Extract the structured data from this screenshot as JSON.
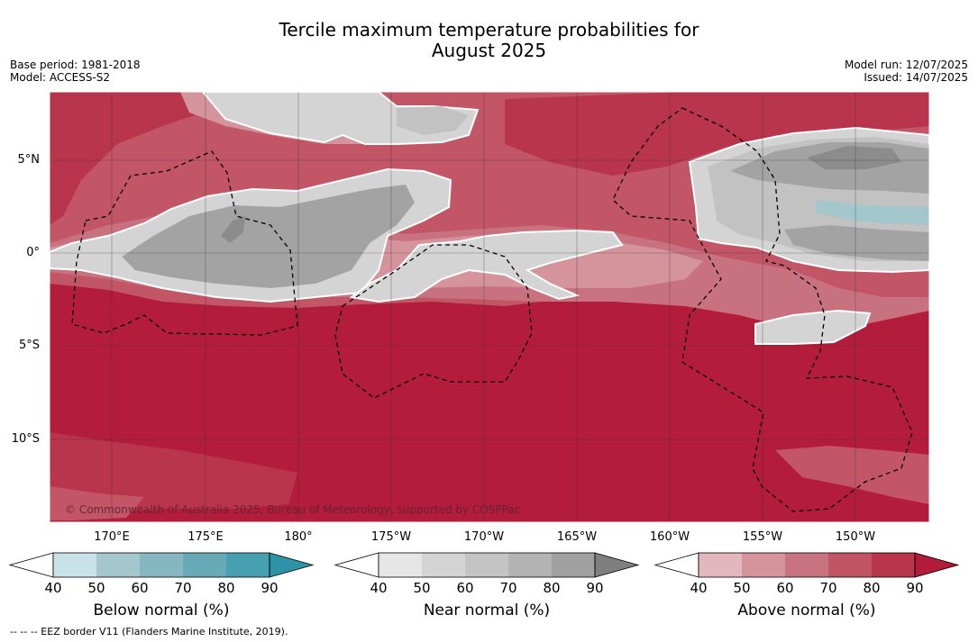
{
  "title_line1": "Tercile maximum temperature probabilities for",
  "title_line2": "August 2025",
  "meta_left": [
    "Base period: 1981-2018",
    "Model: ACCESS-S2"
  ],
  "meta_right": [
    "Model run: 12/07/2025",
    "Issued: 14/07/2025"
  ],
  "lat_labels": [
    "5°N",
    "0°",
    "5°S",
    "10°S"
  ],
  "lon_labels": [
    "170°E",
    "175°E",
    "180°",
    "175°W",
    "170°W",
    "165°W",
    "160°W",
    "155°W",
    "150°W"
  ],
  "copyright": "© Commonwealth of Australia 2025, Bureau of Meteorology, supported by COSPPac",
  "footnote": "--  --  -- EEZ border V11 (Flanders Marine Institute, 2019).",
  "colorbars": [
    {
      "label": "Below normal (%)",
      "ticks": [
        "40",
        "50",
        "60",
        "70",
        "80",
        "90"
      ],
      "colors": [
        "#ffffff",
        "#c9e2e9",
        "#a4c6cd",
        "#86b6c0",
        "#67a9b6",
        "#46a0b0",
        "#2e93a7"
      ]
    },
    {
      "label": "Near normal (%)",
      "ticks": [
        "40",
        "50",
        "60",
        "70",
        "80",
        "90"
      ],
      "colors": [
        "#ffffff",
        "#e6e6e6",
        "#d4d4d4",
        "#c4c4c4",
        "#b3b3b3",
        "#a0a0a0",
        "#7f7f7f"
      ]
    },
    {
      "label": "Above normal (%)",
      "ticks": [
        "40",
        "50",
        "60",
        "70",
        "80",
        "90"
      ],
      "colors": [
        "#ffffff",
        "#e2b7bd",
        "#d5939b",
        "#c8737f",
        "#c05463",
        "#b8354a",
        "#b21c3a"
      ]
    }
  ],
  "colors": {
    "above_90": "#b31c3b",
    "above_80": "#b8354b",
    "above_70": "#c25566",
    "above_60": "#c9727f",
    "above_50": "#d5939c",
    "near_50": "#d4d4d4",
    "near_60": "#c2c2c2",
    "near_70": "#a3a3a3",
    "near_80": "#8c8c8c",
    "below_60": "#a4c6cd"
  }
}
